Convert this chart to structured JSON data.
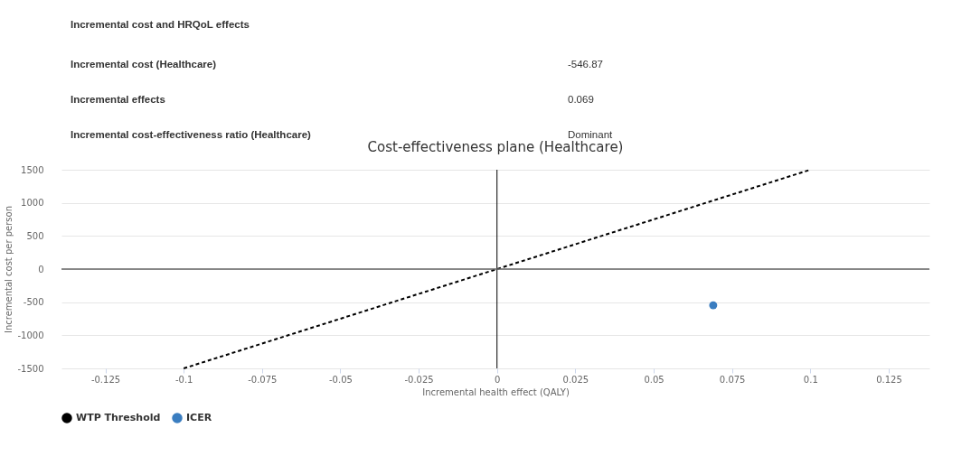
{
  "chart_data": [
    {
      "type": "other",
      "title": "Incremental cost and HRQoL effects",
      "annotations": [
        "Incremental cost (Healthcare)",
        "-546.87",
        "Incremental effects",
        "0.069",
        "Incremental cost-effectiveness ratio (Healthcare)",
        "Dominant"
      ]
    },
    {
      "type": "scatter",
      "title": "Cost-effectiveness plane (Healthcare)",
      "xlabel": "Incremental health effect (QALY)",
      "ylabel": "Incremental cost per person",
      "xlim": [
        -0.139,
        0.138
      ],
      "xticks": [
        -0.125,
        -0.1,
        -0.075,
        -0.05,
        -0.025,
        0,
        0.025,
        0.05,
        0.075,
        0.1,
        0.125
      ],
      "ylim": [
        -1500,
        1500
      ],
      "yticks": [
        -1500,
        -1000,
        -500,
        0,
        500,
        1000,
        1500
      ],
      "grid": "y",
      "legend": "bottom",
      "series": [
        {
          "name": "WTP Threshold",
          "type": "line",
          "x": [
            -0.1,
            0.1
          ],
          "values": [
            -1500,
            1500
          ],
          "color": "#000000",
          "line_style": "dashed",
          "marker": "none"
        },
        {
          "name": "ICER",
          "type": "scatter",
          "x": [
            0.069
          ],
          "values": [
            -546.87
          ],
          "color": "#3a7dc0",
          "marker": "circle"
        }
      ],
      "ref_lines": [
        {
          "axis": "x",
          "value": 0,
          "color": "#000000"
        },
        {
          "axis": "y",
          "value": 0,
          "color": "#666666"
        }
      ]
    }
  ]
}
